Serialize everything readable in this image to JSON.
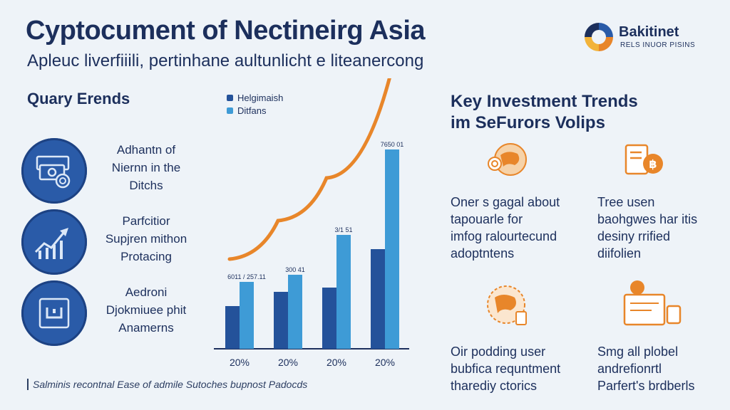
{
  "header": {
    "title": "Cyptocument of Nectineirg Asia",
    "subtitle": "Apleuc liverfiiili, pertinhane aultunlicht e liteanercong"
  },
  "logo": {
    "name": "Bakitinet",
    "tagline": "RELS INUOR PISINS"
  },
  "left_panel": {
    "heading": "Quary Erends",
    "items": [
      {
        "icon": "cash-icon",
        "lines": [
          "Adhantn of",
          "Niernn in the",
          "Ditchs"
        ]
      },
      {
        "icon": "growth-chart-icon",
        "lines": [
          "Parfcitior",
          "Supjren mithon",
          "Protacing"
        ]
      },
      {
        "icon": "secure-box-icon",
        "lines": [
          "Aedroni",
          "Djokmiuee phit",
          "Anamerns"
        ]
      }
    ]
  },
  "chart_data": {
    "type": "bar",
    "categories": [
      "20%",
      "20%",
      "20%",
      "20%"
    ],
    "series": [
      {
        "name": "Helgimaish",
        "color": "#24529a",
        "values": [
          30,
          40,
          43,
          70
        ]
      },
      {
        "name": "Ditfans",
        "color": "#3e9bd6",
        "values": [
          47,
          52,
          80,
          140
        ]
      }
    ],
    "data_labels": [
      "6011 / 257.11",
      "300 41",
      "3/1 51",
      "7650 01"
    ],
    "trend_arrow": {
      "color": "#e8862a",
      "values": [
        53,
        80,
        110,
        190
      ]
    },
    "ylim": [
      0,
      150
    ],
    "legend_position": "top-left"
  },
  "right_panel": {
    "heading_lines": [
      "Key Investment Trends",
      "im SeFurors Volips"
    ],
    "items": [
      {
        "icon": "globe-coin-icon",
        "lines": [
          "Oner s gagal about",
          "tapouarle for",
          "imfog ralourtecund",
          "adoptntens"
        ]
      },
      {
        "icon": "bitcoin-document-icon",
        "lines": [
          "Tree usen",
          "baohgwes har itis",
          "desiny rrified",
          "diifolien"
        ]
      },
      {
        "icon": "world-map-icon",
        "lines": [
          "Oir podding user",
          "bubfica requntment",
          "tharediy ctorics"
        ]
      },
      {
        "icon": "payment-terminal-icon",
        "lines": [
          "Smg all plobel",
          "andrefionrtl",
          "Parfert's brdberls"
        ]
      }
    ]
  },
  "footer": {
    "text": "Salminis recontnal Ease of admile Sutoches bupnost Padocds"
  },
  "colors": {
    "primary": "#1c2f5c",
    "accent_orange": "#e8862a",
    "bar_dark": "#24529a",
    "bar_light": "#3e9bd6"
  }
}
